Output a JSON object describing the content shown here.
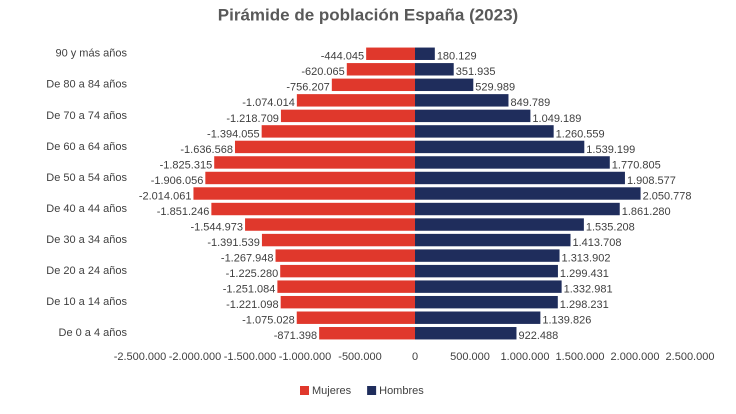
{
  "chart_data": {
    "type": "bar",
    "title": "Pirámide de población España (2023)",
    "categories": [
      "90 y más años",
      null,
      "De 80 a 84 años",
      null,
      "De 70 a 74 años",
      null,
      "De 60 a 64 años",
      null,
      "De 50 a 54 años",
      null,
      "De 40 a 44 años",
      null,
      "De 30 a 34 años",
      null,
      "De 20 a 24 años",
      null,
      "De 10 a 14 años",
      null,
      "De 0 a 4 años"
    ],
    "series": [
      {
        "name": "Mujeres",
        "color": "#e0382c",
        "values": [
          -444045,
          -620065,
          -756207,
          -1074014,
          -1218709,
          -1394055,
          -1636568,
          -1825315,
          -1906056,
          -2014061,
          -1851246,
          -1544973,
          -1391539,
          -1267948,
          -1225280,
          -1251084,
          -1221098,
          -1075028,
          -871398
        ],
        "value_labels": [
          "-444.045",
          "-620.065",
          "-756.207",
          "-1.074.014",
          "-1.218.709",
          "-1.394.055",
          "-1.636.568",
          "-1.825.315",
          "-1.906.056",
          "-2.014.061",
          "-1.851.246",
          "-1.544.973",
          "-1.391.539",
          "-1.267.948",
          "-1.225.280",
          "-1.251.084",
          "-1.221.098",
          "-1.075.028",
          "-871.398"
        ]
      },
      {
        "name": "Hombres",
        "color": "#1f2d5c",
        "values": [
          180129,
          351935,
          529989,
          849789,
          1049189,
          1260559,
          1539199,
          1770805,
          1908577,
          2050778,
          1861280,
          1535208,
          1413708,
          1313902,
          1299431,
          1332981,
          1298231,
          1139826,
          922488
        ],
        "value_labels": [
          "180.129",
          "351.935",
          "529.989",
          "849.789",
          "1.049.189",
          "1.260.559",
          "1.539.199",
          "1.770.805",
          "1.908.577",
          "2.050.778",
          "1.861.280",
          "1.535.208",
          "1.413.708",
          "1.313.902",
          "1.299.431",
          "1.332.981",
          "1.298.231",
          "1.139.826",
          "922.488"
        ]
      }
    ],
    "xlim": [
      -2500000,
      2500000
    ],
    "xticks": [
      {
        "value": -2500000,
        "label": "-2.500.000"
      },
      {
        "value": -2000000,
        "label": "-2.000.000"
      },
      {
        "value": -1500000,
        "label": "-1.500.000"
      },
      {
        "value": -1000000,
        "label": "-1.000.000"
      },
      {
        "value": -500000,
        "label": "-500.000"
      },
      0,
      {
        "value": 500000,
        "label": "500.000"
      },
      {
        "value": 1000000,
        "label": "1.000.000"
      },
      {
        "value": 1500000,
        "label": "1.500.000"
      },
      {
        "value": 2000000,
        "label": "2.000.000"
      },
      {
        "value": 2500000,
        "label": "2.500.000"
      }
    ],
    "grid": false,
    "legend": "bottom"
  }
}
